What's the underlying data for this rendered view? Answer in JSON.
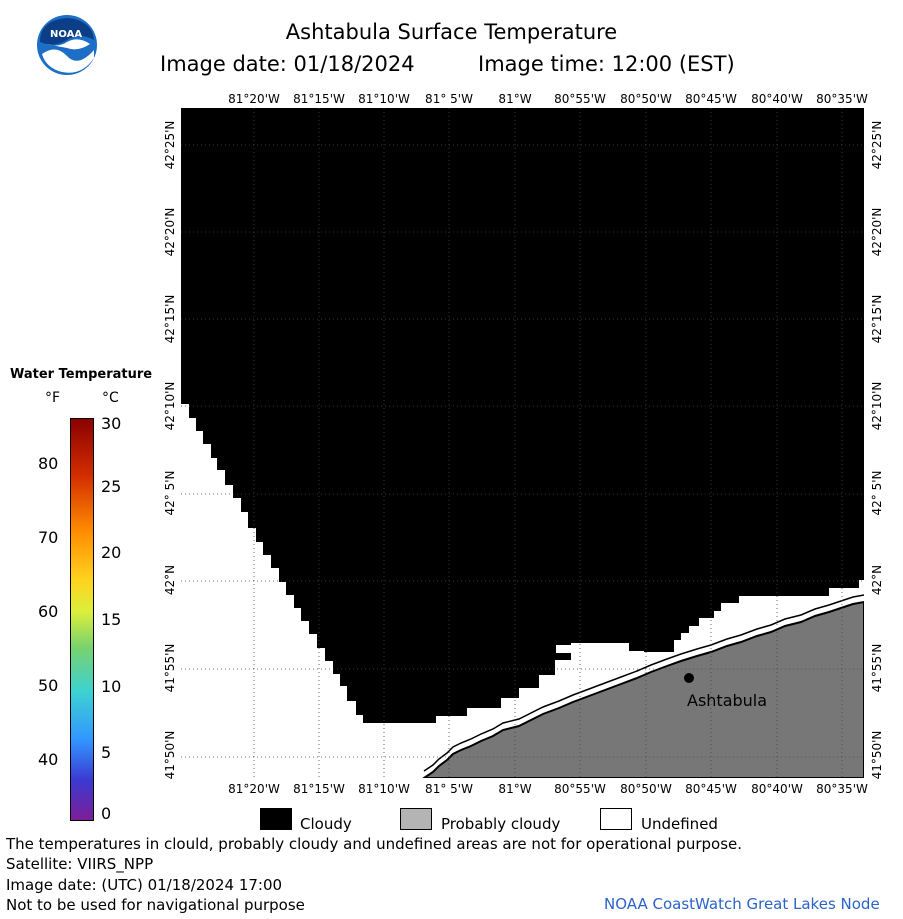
{
  "header": {
    "title": "Ashtabula Surface Temperature",
    "image_date": "Image date: 01/18/2024",
    "image_time": "Image time: 12:00 (EST)"
  },
  "logo": {
    "text": "NOAA"
  },
  "map": {
    "lon_labels": [
      "81°20'W",
      "81°15'W",
      "81°10'W",
      "81° 5'W",
      "81°W",
      "80°55'W",
      "80°50'W",
      "80°45'W",
      "80°40'W",
      "80°35'W"
    ],
    "lat_labels_left": [
      "42°25'N",
      "42°20'N",
      "42°15'N",
      "42°10'N",
      "42° 5'N",
      "42°N",
      "41°55'N",
      "41°50'N"
    ],
    "lat_labels_right": [
      "42°25'N",
      "42°20'N",
      "42°15'N",
      "42°10'N",
      "42° 5'N",
      "42°N",
      "41°55'N",
      "41°50'N"
    ],
    "city_label": "Ashtabula",
    "colors": {
      "cloudy": "#000000",
      "land": "#777777",
      "undefined": "#ffffff",
      "shore": "#000000"
    }
  },
  "legend": {
    "title": "Water Temperature",
    "unit_f": "°F",
    "unit_c": "°C",
    "f_ticks": [
      "80",
      "70",
      "60",
      "50",
      "40"
    ],
    "c_ticks": [
      "30",
      "25",
      "20",
      "15",
      "10",
      "5",
      "0"
    ]
  },
  "key": {
    "cloudy": "Cloudy",
    "probably_cloudy": "Probably cloudy",
    "undefined": "Undefined"
  },
  "footer": {
    "note": "The temperatures in clould, probably cloudy and undefined areas are not for operational purpose.",
    "satellite": "Satellite: VIIRS_NPP",
    "utc_date": "Image date: (UTC) 01/18/2024  17:00",
    "nav": "Not to be used for navigational purpose",
    "credit": "NOAA CoastWatch Great Lakes Node"
  }
}
